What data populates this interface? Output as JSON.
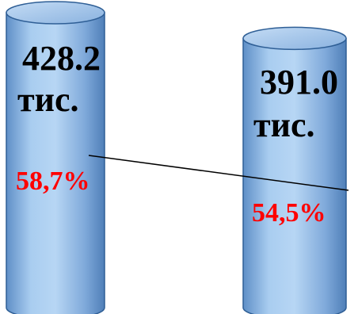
{
  "chart_data": {
    "type": "bar",
    "categories": [
      "",
      ""
    ],
    "values": [
      428.2,
      391.0
    ],
    "unit_label": "тис.",
    "value_labels": [
      "428.2",
      "391.0"
    ],
    "percentages": [
      58.7,
      54.5
    ],
    "percent_labels": [
      "58,7%",
      "54,5%"
    ],
    "title": "",
    "xlabel": "",
    "ylabel": "",
    "grid": false,
    "legend": "none",
    "colors": {
      "bar_fill": "#8fb8e6",
      "bar_stroke": "#2f5f96",
      "percent_text": "#ff0000",
      "trend_line": "#000000"
    }
  }
}
